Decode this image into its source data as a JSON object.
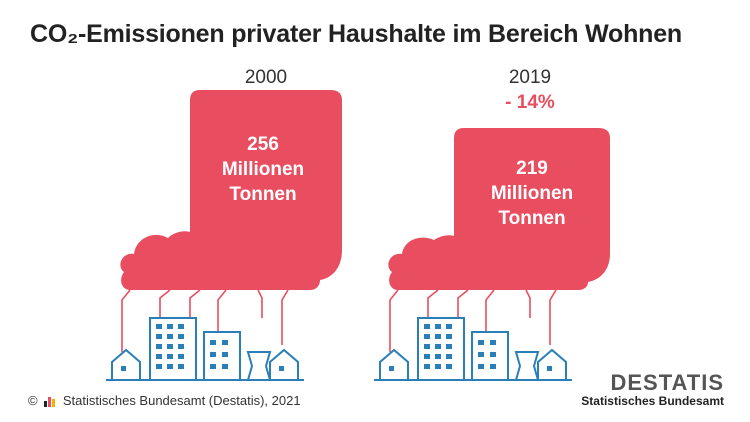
{
  "chart_data": {
    "type": "pictogram",
    "title": "CO₂-Emissionen privater Haushalte im Bereich Wohnen",
    "categories": [
      "2000",
      "2019"
    ],
    "values": [
      256,
      219
    ],
    "value_unit_lines": [
      "Millionen",
      "Tonnen"
    ],
    "change_2019": "- 14%",
    "colors": {
      "cloud": "#e84e5f",
      "buildings": "#2a7fb8",
      "highlight": "#e84e5f"
    }
  },
  "footer": {
    "copyright": "©",
    "source": "Statistisches Bundesamt (Destatis), 2021",
    "brand_word": "DESTATIS",
    "brand_sub": "Statistisches Bundesamt"
  },
  "icons": {
    "cloud": "smoke-cloud-icon",
    "city": "city-skyline-icon",
    "logo": "destatis-logo-icon"
  }
}
